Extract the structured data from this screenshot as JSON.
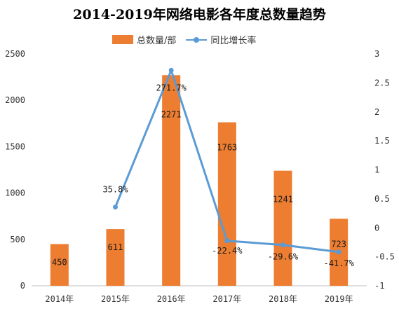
{
  "chart_data": {
    "type": "bar",
    "title": "2014-2019年网络电影各年度总数量趋势",
    "categories": [
      "2014年",
      "2015年",
      "2016年",
      "2017年",
      "2018年",
      "2019年"
    ],
    "series": [
      {
        "name": "总数量/部",
        "type": "bar",
        "axis": "left",
        "color": "#ED7D31",
        "values": [
          450,
          611,
          2271,
          1763,
          1241,
          723
        ],
        "labels": [
          "450",
          "611",
          "2271",
          "1763",
          "1241",
          "723"
        ]
      },
      {
        "name": "同比增长率",
        "type": "line",
        "axis": "right",
        "color": "#5B9BD5",
        "values": [
          null,
          0.358,
          2.717,
          -0.224,
          -0.296,
          -0.417
        ],
        "labels": [
          "",
          "35.8%",
          "271.7%",
          "-22.4%",
          "-29.6%",
          "-41.7%"
        ]
      }
    ],
    "y_left": {
      "range": [
        0,
        2500
      ],
      "ticks": [
        0,
        500,
        1000,
        1500,
        2000,
        2500
      ],
      "tick_labels": [
        "0",
        "500",
        "1000",
        "1500",
        "2000",
        "2500"
      ]
    },
    "y_right": {
      "range": [
        -1,
        3
      ],
      "ticks": [
        -1,
        -0.5,
        0,
        0.5,
        1,
        1.5,
        2,
        2.5,
        3
      ],
      "tick_labels": [
        "-1",
        "-0.5",
        "0",
        "0.5",
        "1",
        "1.5",
        "2",
        "2.5",
        "3"
      ]
    },
    "xlabel": "",
    "ylabel": "",
    "grid": false,
    "legend_position": "top"
  }
}
